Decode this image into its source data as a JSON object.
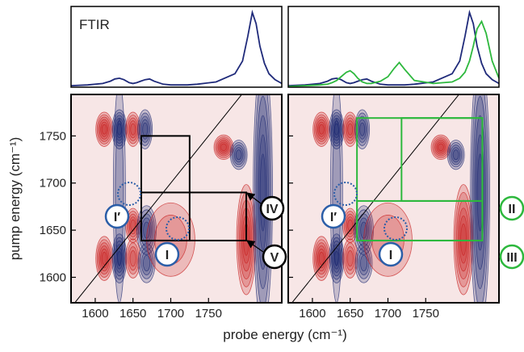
{
  "chart_data": [
    {
      "type": "line",
      "annotation": "FTIR",
      "xlim": [
        1568,
        1847
      ],
      "ylim": [
        0,
        1.08
      ],
      "x": [
        1568,
        1590,
        1610,
        1620,
        1626,
        1632,
        1638,
        1645,
        1650,
        1655,
        1660,
        1666,
        1672,
        1678,
        1690,
        1700,
        1708,
        1715,
        1722,
        1735,
        1760,
        1785,
        1795,
        1802,
        1808,
        1813,
        1818,
        1824,
        1830,
        1838,
        1847
      ],
      "series": [
        {
          "color": "#1f2a7a",
          "values": [
            0.02,
            0.03,
            0.05,
            0.08,
            0.11,
            0.12,
            0.1,
            0.06,
            0.05,
            0.06,
            0.08,
            0.1,
            0.11,
            0.08,
            0.04,
            0.03,
            0.03,
            0.03,
            0.03,
            0.04,
            0.07,
            0.18,
            0.35,
            0.68,
            1.0,
            0.85,
            0.55,
            0.32,
            0.18,
            0.1,
            0.05
          ]
        }
      ]
    },
    {
      "type": "line",
      "xlim": [
        1568,
        1847
      ],
      "ylim": [
        0,
        1.08
      ],
      "x": [
        1568,
        1590,
        1610,
        1620,
        1626,
        1632,
        1638,
        1645,
        1650,
        1655,
        1660,
        1666,
        1672,
        1678,
        1690,
        1700,
        1708,
        1715,
        1722,
        1735,
        1760,
        1785,
        1795,
        1802,
        1808,
        1813,
        1818,
        1824,
        1830,
        1838,
        1847
      ],
      "series": [
        {
          "color": "#1f2a7a",
          "values": [
            0.02,
            0.03,
            0.05,
            0.08,
            0.11,
            0.12,
            0.1,
            0.06,
            0.05,
            0.06,
            0.08,
            0.1,
            0.11,
            0.08,
            0.04,
            0.03,
            0.03,
            0.03,
            0.03,
            0.04,
            0.07,
            0.18,
            0.35,
            0.68,
            1.0,
            0.85,
            0.55,
            0.32,
            0.18,
            0.1,
            0.05
          ]
        },
        {
          "color": "#2db83d",
          "values": [
            0.01,
            0.02,
            0.03,
            0.04,
            0.06,
            0.09,
            0.14,
            0.2,
            0.22,
            0.18,
            0.12,
            0.07,
            0.05,
            0.05,
            0.08,
            0.14,
            0.25,
            0.33,
            0.24,
            0.09,
            0.05,
            0.07,
            0.12,
            0.2,
            0.35,
            0.55,
            0.78,
            0.88,
            0.72,
            0.35,
            0.12
          ]
        }
      ]
    },
    {
      "type": "contour",
      "ylabel": "pump energy (cm⁻¹)",
      "xlabel": "probe energy (cm⁻¹)",
      "xlim": [
        1568,
        1847
      ],
      "ylim": [
        1573,
        1794
      ],
      "xticks": [
        1600,
        1650,
        1700,
        1750
      ],
      "yticks": [
        1600,
        1650,
        1700,
        1750
      ],
      "positive_color": "#c81e1e",
      "negative_color": "#1c2870",
      "diagonal": true,
      "features": [
        {
          "x": 1612,
          "y": 1757,
          "sx": 7,
          "sy": 14,
          "amp": 1
        },
        {
          "x": 1632,
          "y": 1757,
          "sx": 6,
          "sy": 16,
          "amp": -1
        },
        {
          "x": 1650,
          "y": 1757,
          "sx": 6,
          "sy": 14,
          "amp": 0.8
        },
        {
          "x": 1666,
          "y": 1757,
          "sx": 6,
          "sy": 16,
          "amp": -0.9
        },
        {
          "x": 1612,
          "y": 1620,
          "sx": 7,
          "sy": 18,
          "amp": 1
        },
        {
          "x": 1632,
          "y": 1620,
          "sx": 6,
          "sy": 20,
          "amp": -1
        },
        {
          "x": 1650,
          "y": 1655,
          "sx": 6,
          "sy": 14,
          "amp": 0.8
        },
        {
          "x": 1668,
          "y": 1650,
          "sx": 8,
          "sy": 20,
          "amp": -0.9
        },
        {
          "x": 1650,
          "y": 1620,
          "sx": 6,
          "sy": 16,
          "amp": 0.7
        },
        {
          "x": 1668,
          "y": 1615,
          "sx": 7,
          "sy": 16,
          "amp": -0.7
        },
        {
          "x": 1770,
          "y": 1738,
          "sx": 8,
          "sy": 10,
          "amp": 1
        },
        {
          "x": 1790,
          "y": 1730,
          "sx": 7,
          "sy": 12,
          "amp": -0.8
        },
        {
          "x": 1800,
          "y": 1640,
          "sx": 8,
          "sy": 45,
          "amp": 1
        },
        {
          "x": 1822,
          "y": 1690,
          "sx": 8,
          "sy": 110,
          "amp": -1
        },
        {
          "x": 1632,
          "y": 1690,
          "sx": 5,
          "sy": 90,
          "amp": -0.35
        },
        {
          "x": 1700,
          "y": 1640,
          "sx": 20,
          "sy": 30,
          "amp": 0.3
        }
      ],
      "regions": [
        {
          "color": "#000000",
          "x": [
            1661,
            1725
          ],
          "y": [
            1639,
            1750
          ]
        },
        {
          "color": "#000000",
          "x": [
            1661,
            1800
          ],
          "y": [
            1639,
            1690
          ]
        }
      ],
      "annotations": [
        {
          "text": "I′",
          "color": "#2b5ea8"
        },
        {
          "text": "I",
          "color": "#2b5ea8"
        },
        {
          "text": "IV",
          "color": "#000000"
        },
        {
          "text": "V",
          "color": "#000000"
        }
      ]
    },
    {
      "type": "contour",
      "xlim": [
        1568,
        1847
      ],
      "ylim": [
        1573,
        1794
      ],
      "xticks": [
        1600,
        1650,
        1700,
        1750
      ],
      "yticks": [
        1600,
        1650,
        1700,
        1750
      ],
      "positive_color": "#c81e1e",
      "negative_color": "#1c2870",
      "diagonal": true,
      "features": [
        {
          "x": 1612,
          "y": 1757,
          "sx": 7,
          "sy": 14,
          "amp": 1
        },
        {
          "x": 1632,
          "y": 1757,
          "sx": 6,
          "sy": 16,
          "amp": -1
        },
        {
          "x": 1650,
          "y": 1757,
          "sx": 6,
          "sy": 14,
          "amp": 0.8
        },
        {
          "x": 1666,
          "y": 1757,
          "sx": 6,
          "sy": 16,
          "amp": -0.9
        },
        {
          "x": 1612,
          "y": 1620,
          "sx": 7,
          "sy": 18,
          "amp": 1
        },
        {
          "x": 1632,
          "y": 1620,
          "sx": 6,
          "sy": 20,
          "amp": -1
        },
        {
          "x": 1650,
          "y": 1655,
          "sx": 6,
          "sy": 14,
          "amp": 0.8
        },
        {
          "x": 1668,
          "y": 1650,
          "sx": 8,
          "sy": 20,
          "amp": -0.9
        },
        {
          "x": 1650,
          "y": 1620,
          "sx": 6,
          "sy": 16,
          "amp": 0.7
        },
        {
          "x": 1668,
          "y": 1615,
          "sx": 7,
          "sy": 16,
          "amp": -0.7
        },
        {
          "x": 1770,
          "y": 1738,
          "sx": 8,
          "sy": 10,
          "amp": 1
        },
        {
          "x": 1790,
          "y": 1730,
          "sx": 7,
          "sy": 12,
          "amp": -0.8
        },
        {
          "x": 1800,
          "y": 1640,
          "sx": 8,
          "sy": 45,
          "amp": 1
        },
        {
          "x": 1822,
          "y": 1690,
          "sx": 8,
          "sy": 110,
          "amp": -1
        },
        {
          "x": 1632,
          "y": 1690,
          "sx": 5,
          "sy": 90,
          "amp": -0.35
        },
        {
          "x": 1700,
          "y": 1640,
          "sx": 20,
          "sy": 30,
          "amp": 0.3
        }
      ],
      "regions": [
        {
          "color": "#2db83d",
          "x": [
            1659,
            1825
          ],
          "y": [
            1639,
            1769
          ]
        },
        {
          "color": "#2db83d",
          "x": [
            1718,
            1825
          ],
          "y": [
            1681,
            1769
          ]
        },
        {
          "color": "#2db83d",
          "x": [
            1659,
            1825
          ],
          "y": [
            1639,
            1681
          ]
        }
      ],
      "annotations": [
        {
          "text": "I′",
          "color": "#2b5ea8"
        },
        {
          "text": "I",
          "color": "#2b5ea8"
        },
        {
          "text": "II",
          "color": "#2db83d"
        },
        {
          "text": "III",
          "color": "#2db83d"
        }
      ]
    }
  ]
}
